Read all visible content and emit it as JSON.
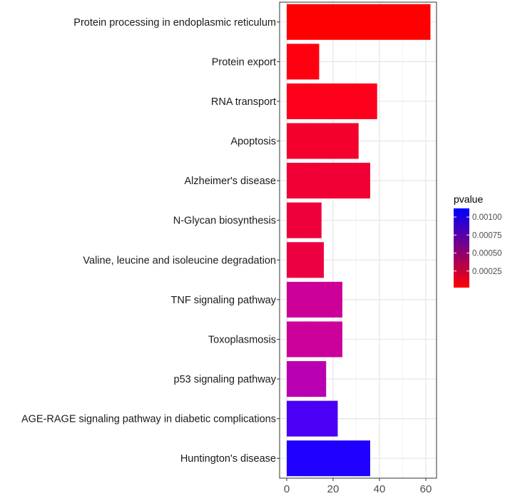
{
  "chart_data": {
    "type": "bar",
    "orientation": "horizontal",
    "title": "",
    "xlabel": "",
    "ylabel": "",
    "xlim": [
      0,
      65
    ],
    "xticks": [
      0,
      20,
      40,
      60
    ],
    "grid": true,
    "categories": [
      "Protein processing in endoplasmic reticulum",
      "Protein export",
      "RNA transport",
      "Apoptosis",
      "Alzheimer's disease",
      "N-Glycan biosynthesis",
      "Valine, leucine and isoleucine degradation",
      "TNF signaling pathway",
      "Toxoplasmosis",
      "p53 signaling pathway",
      "AGE-RAGE signaling pathway in diabetic complications",
      "Huntington's disease"
    ],
    "values": [
      62,
      14,
      39,
      31,
      36,
      15,
      16,
      24,
      24,
      17,
      22,
      36
    ],
    "colors": [
      "#ff0000",
      "#ff0010",
      "#ff001c",
      "#f4002c",
      "#f00034",
      "#ee003a",
      "#ec0040",
      "#cc0098",
      "#cc009a",
      "#b800b0",
      "#4a00f4",
      "#2000ff"
    ],
    "legend": {
      "title": "pvalue",
      "position": "right",
      "min": 2e-05,
      "max": 0.00112,
      "ticks": [
        0.00025,
        0.0005,
        0.00075,
        0.001
      ],
      "tick_labels": [
        "0.00025",
        "0.00050",
        "0.00075",
        "0.00100"
      ],
      "low_color": "#ff0000",
      "high_color": "#0000ff"
    }
  }
}
